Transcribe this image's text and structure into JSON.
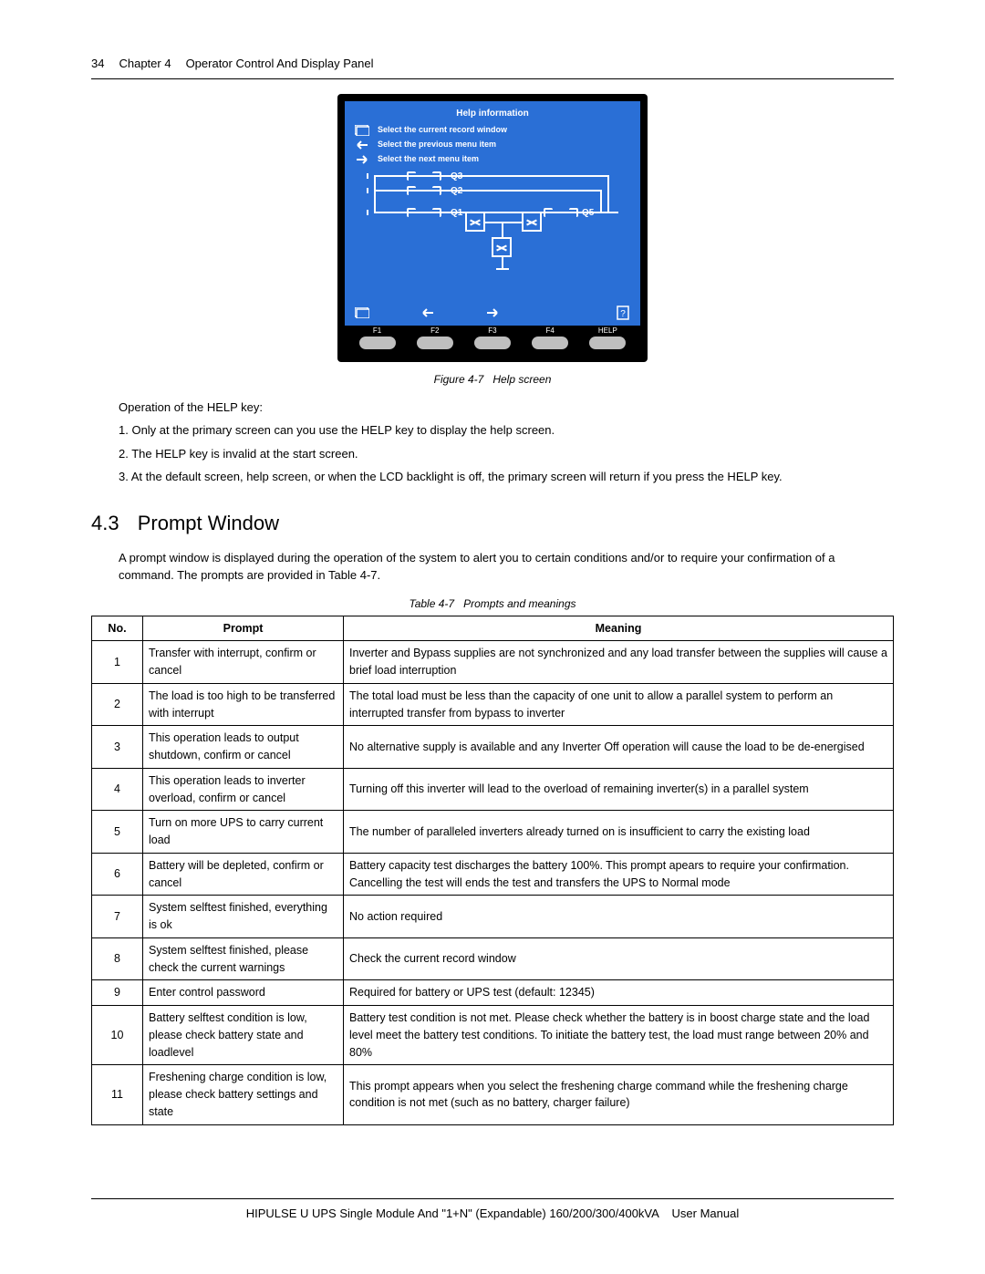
{
  "header": {
    "page_number": "34",
    "chapter_label": "Chapter 4",
    "chapter_title": "Operator Control And Display Panel"
  },
  "help_screen": {
    "title": "Help information",
    "rows": [
      {
        "icon": "window-icon",
        "text": "Select the current record window"
      },
      {
        "icon": "arrow-left-icon",
        "text": "Select the previous menu item"
      },
      {
        "icon": "arrow-right-icon",
        "text": "Select the next menu item"
      }
    ],
    "mimic_labels": {
      "q1": "Q1",
      "q2": "Q2",
      "q3": "Q3",
      "q5": "Q5"
    },
    "buttons": [
      "F1",
      "F2",
      "F3",
      "F4",
      "HELP"
    ],
    "colors": {
      "bezel": "#000000",
      "screen_bg": "#2a6fd6",
      "screen_fg": "#ffffff",
      "button_bg": "#bfbfbf"
    }
  },
  "figure_caption": {
    "ref": "Figure 4-7",
    "title": "Help screen"
  },
  "operation_intro": "Operation of the HELP key:",
  "operation_items": [
    "1. Only at the primary screen can you use the HELP key to display the help screen.",
    "2. The HELP key is invalid at the start screen.",
    "3. At the default screen, help screen, or when the LCD backlight is off, the primary screen will return if you press the HELP key."
  ],
  "section": {
    "number": "4.3",
    "title": "Prompt Window"
  },
  "section_body": "A prompt window is displayed during the operation of the system to alert you to certain conditions and/or to require your confirmation of a command. The prompts are provided in Table 4-7.",
  "table_caption": {
    "ref": "Table 4-7",
    "title": "Prompts and meanings"
  },
  "table": {
    "columns": [
      "No.",
      "Prompt",
      "Meaning"
    ],
    "rows": [
      {
        "no": "1",
        "prompt": "Transfer with interrupt, confirm or cancel",
        "meaning": "Inverter and Bypass supplies are not synchronized and any load transfer between the supplies will cause a brief load interruption"
      },
      {
        "no": "2",
        "prompt": "The load is too high to be transferred with interrupt",
        "meaning": "The total load must be less than the capacity of one unit to allow a parallel system to perform an interrupted transfer from bypass to inverter"
      },
      {
        "no": "3",
        "prompt": "This operation leads to output shutdown, confirm or cancel",
        "meaning": "No alternative supply is available and any Inverter Off operation will cause the load to be de-energised"
      },
      {
        "no": "4",
        "prompt": "This operation leads to inverter overload, confirm or cancel",
        "meaning": "Turning off this inverter will lead to the overload of remaining inverter(s) in a parallel system"
      },
      {
        "no": "5",
        "prompt": "Turn on more UPS to carry current load",
        "meaning": "The number of paralleled inverters already turned on is insufficient to carry the existing load"
      },
      {
        "no": "6",
        "prompt": "Battery will be depleted, confirm or cancel",
        "meaning": "Battery capacity test discharges the battery 100%. This prompt apears to require your confirmation. Cancelling the test will ends the test and transfers the UPS to Normal mode"
      },
      {
        "no": "7",
        "prompt": "System selftest finished, everything is ok",
        "meaning": "No action required"
      },
      {
        "no": "8",
        "prompt": "System selftest finished, please check the current warnings",
        "meaning": "Check the current record window"
      },
      {
        "no": "9",
        "prompt": "Enter control password",
        "meaning": "Required for battery or UPS test (default: 12345)"
      },
      {
        "no": "10",
        "prompt": "Battery selftest condition is low, please check battery state and loadlevel",
        "meaning": "Battery test condition is not met. Please check whether the battery is in boost charge state and the load level meet the battery test conditions. To initiate the battery test, the load must range between 20% and 80%"
      },
      {
        "no": "11",
        "prompt": "Freshening charge condition is low, please check battery settings and state",
        "meaning": "This prompt appears when you select the freshening charge command while the freshening charge condition is not met (such as no battery, charger failure)"
      }
    ]
  },
  "footer": {
    "line1": "HIPULSE U UPS Single Module And \"1+N\" (Expandable) 160/200/300/400kVA",
    "line2": "User Manual"
  }
}
